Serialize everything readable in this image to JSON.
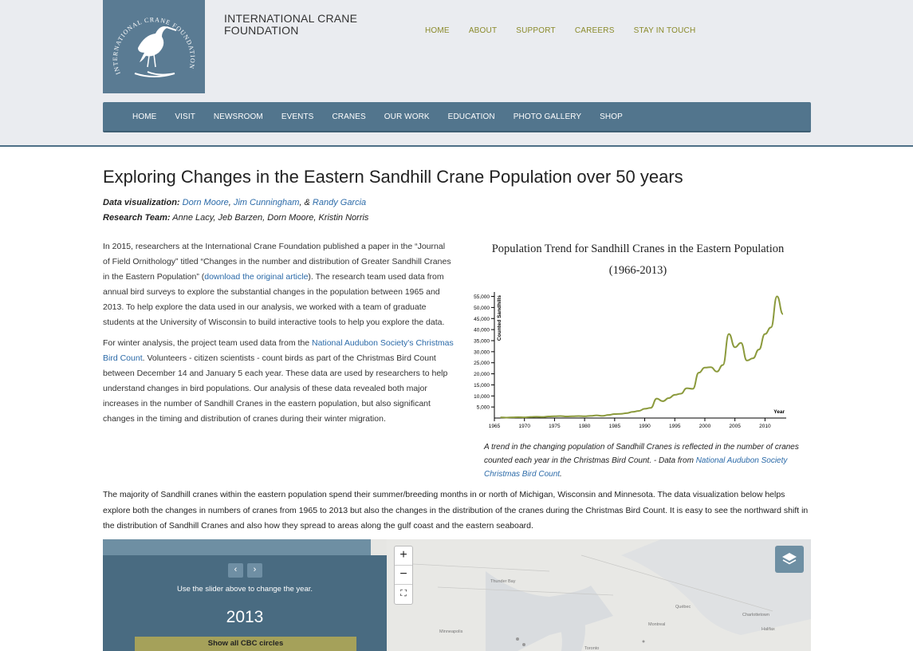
{
  "header": {
    "org_name_line1": "INTERNATIONAL CRANE",
    "org_name_line2": "FOUNDATION",
    "logo_text": "INTERNATIONAL CRANE FOUNDATION",
    "top_nav": [
      "HOME",
      "ABOUT",
      "SUPPORT",
      "CAREERS",
      "STAY IN TOUCH"
    ],
    "main_nav": [
      "HOME",
      "VISIT",
      "NEWSROOM",
      "EVENTS",
      "CRANES",
      "OUR WORK",
      "EDUCATION",
      "PHOTO GALLERY",
      "SHOP"
    ]
  },
  "article": {
    "title": "Exploring Changes in the Eastern Sandhill Crane Population over 50 years",
    "dataviz_label": "Data visualization:",
    "dataviz_names": [
      "Dorn Moore",
      "Jim Cunningham",
      "Randy Garcia"
    ],
    "dataviz_sep1": ", ",
    "dataviz_sep2": ", & ",
    "team_label": "Research Team:",
    "team_names": "Anne Lacy, Jeb Barzen, Dorn Moore, Kristin Norris",
    "p1_a": "In 2015, researchers at the International Crane Foundation published a paper in the “Journal of Field Ornithology” titled “Changes in the number and distribution of Greater Sandhill Cranes in the Eastern Population” (",
    "p1_link": "download the original article",
    "p1_b": "). The research team used data from annual bird surveys to explore the substantial changes in the population between 1965 and 2013. To help explore the data used in our analysis, we worked with a team of graduate students at the University of Wisconsin to build interactive tools to help you explore the data.",
    "p2_a": "For winter analysis, the project team used data from the ",
    "p2_link": "National Audubon Society's Christmas Bird Count",
    "p2_b": ". Volunteers - citizen scientists - count birds as part of the Christmas Bird Count between December 14 and January 5 each year. These data are used by researchers to help understand changes in bird populations. Our analysis of these data revealed both major increases in the number of Sandhill Cranes in the eastern population, but also significant changes in the timing and distribution of cranes during their winter migration.",
    "caption_a": "A trend in the changing population of Sandhill Cranes is reflected in the number of cranes counted each year in the Christmas Bird Count. - Data from ",
    "caption_link": "National Audubon Society Christmas Bird Count",
    "caption_b": ".",
    "p3": "The majority of Sandhill cranes within the eastern population spend their summer/breeding months in or north of Michigan, Wisconsin and Minnesota. The data visualization below helps explore both the changes in numbers of cranes from 1965 to 2013 but also the changes in the distribution of the cranes during the Christmas Bird Count. It is easy to see the northward shift in the distribution of Sandhill Cranes and also how they spread to areas along the gulf coast and the eastern seaboard."
  },
  "map_panel": {
    "prev_label": "‹",
    "next_label": "›",
    "hint": "Use the slider above to change the year.",
    "year": "2013",
    "cbc_button": "Show all CBC circles",
    "zoom_in": "+",
    "zoom_out": "−",
    "fullscreen": "⛶",
    "labels": [
      "Thunder Bay",
      "Minneapolis",
      "Québec",
      "Montreal",
      "Charlottetown",
      "Halifax",
      "Toronto"
    ]
  },
  "chart_data": {
    "type": "line",
    "title": "Population Trend for Sandhill Cranes in the Eastern Population",
    "subtitle": "(1966-2013)",
    "xlabel": "Year",
    "ylabel": "Counted Sandhills",
    "xlim": [
      1965,
      2013
    ],
    "ylim": [
      0,
      57000
    ],
    "xticks": [
      1965,
      1970,
      1975,
      1980,
      1985,
      1990,
      1995,
      2000,
      2005,
      2010
    ],
    "yticks": [
      5000,
      10000,
      15000,
      20000,
      25000,
      30000,
      35000,
      40000,
      45000,
      50000,
      55000
    ],
    "ytick_labels": [
      "5,000",
      "10,000",
      "15,000",
      "20,000",
      "25,000",
      "30,000",
      "35,000",
      "40,000",
      "45,000",
      "50,000",
      "55,000"
    ],
    "line_color": "#8b9a3c",
    "x": [
      1966,
      1967,
      1968,
      1969,
      1970,
      1971,
      1972,
      1973,
      1974,
      1975,
      1976,
      1977,
      1978,
      1979,
      1980,
      1981,
      1982,
      1983,
      1984,
      1985,
      1986,
      1987,
      1988,
      1989,
      1990,
      1991,
      1992,
      1993,
      1994,
      1995,
      1996,
      1997,
      1998,
      1999,
      2000,
      2001,
      2002,
      2003,
      2004,
      2005,
      2006,
      2007,
      2008,
      2009,
      2010,
      2011,
      2012,
      2013
    ],
    "y": [
      300,
      200,
      300,
      400,
      300,
      500,
      600,
      500,
      700,
      800,
      900,
      700,
      800,
      900,
      800,
      1000,
      1200,
      1000,
      1400,
      1800,
      1900,
      2200,
      2800,
      3200,
      4200,
      4600,
      8800,
      7600,
      9000,
      10500,
      11000,
      13500,
      13200,
      20500,
      22800,
      23000,
      21000,
      24000,
      38000,
      32000,
      34000,
      26000,
      27000,
      31000,
      38000,
      41000,
      55000,
      47000
    ]
  }
}
